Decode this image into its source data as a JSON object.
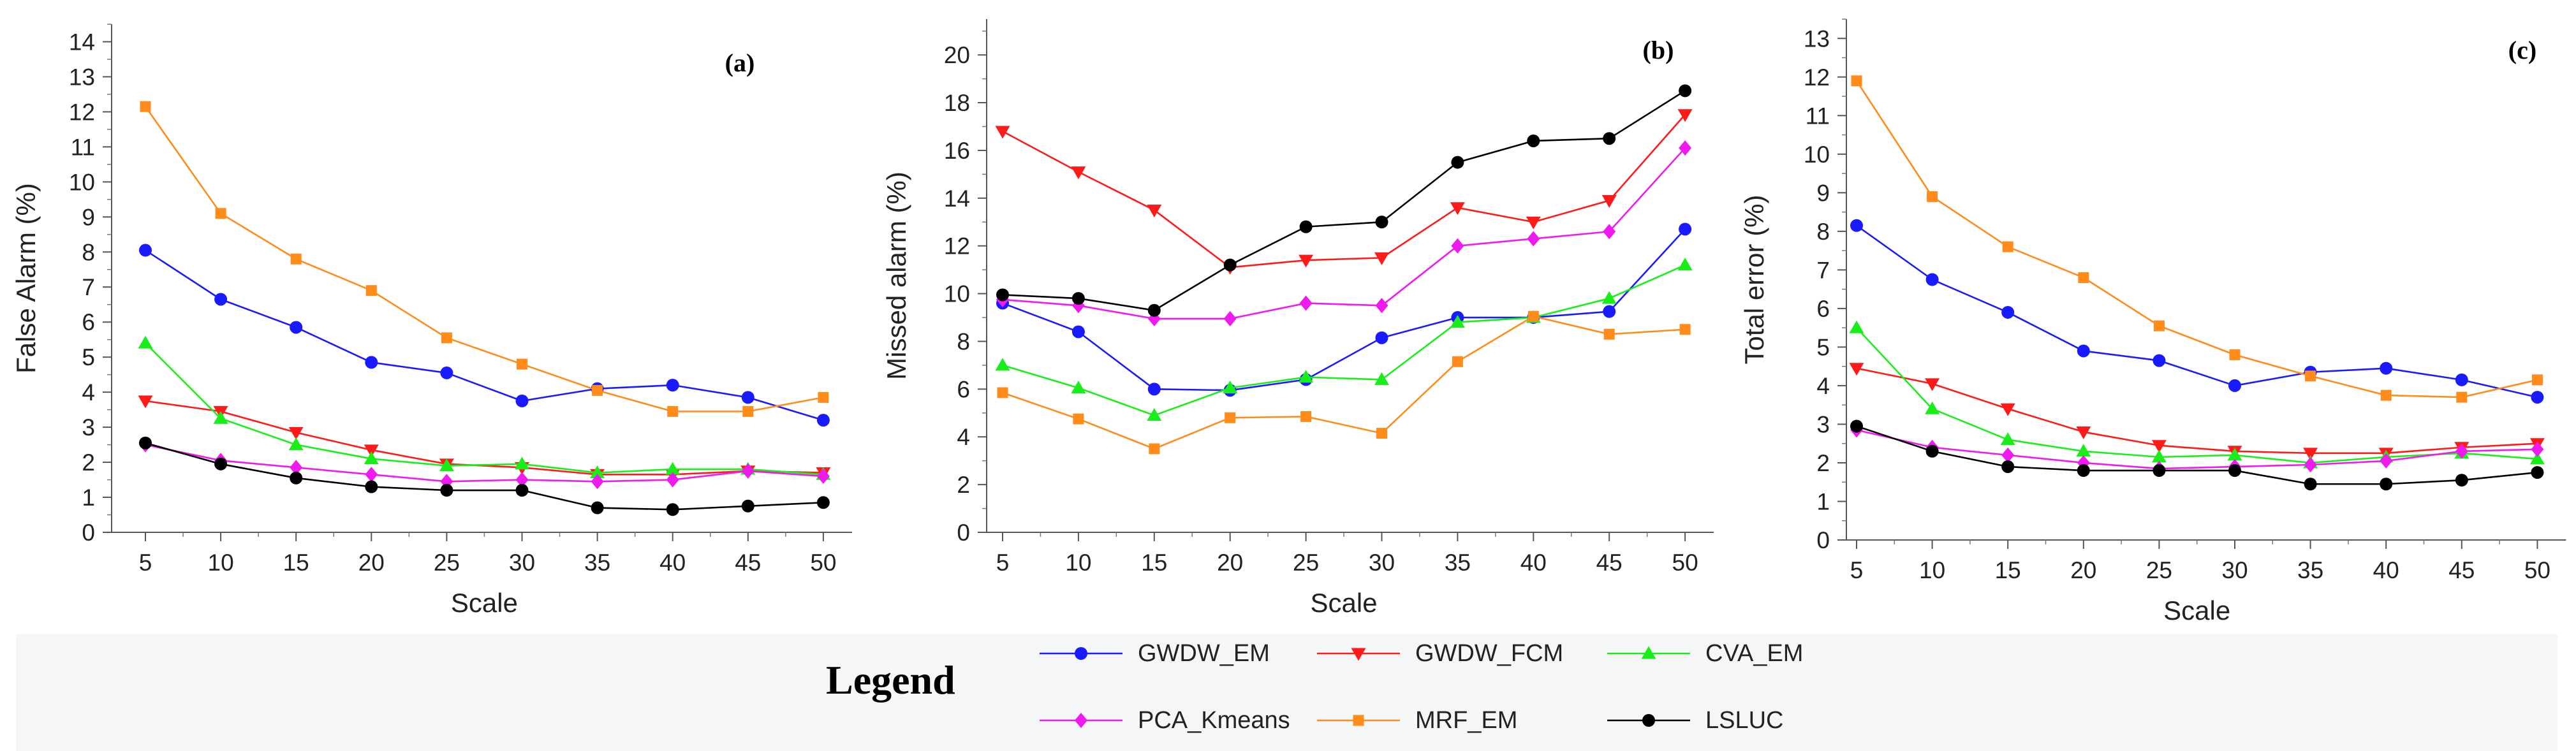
{
  "x_axis_label": "Scale",
  "legend": {
    "title": "Legend",
    "entries": [
      {
        "name": "GWDW_EM",
        "color": "#1a1aff",
        "marker": "circle"
      },
      {
        "name": "GWDW_FCM",
        "color": "#ff1a1a",
        "marker": "triangle-down"
      },
      {
        "name": "CVA_EM",
        "color": "#1aee1a",
        "marker": "triangle-up"
      },
      {
        "name": "PCA_Kmeans",
        "color": "#ee1aee",
        "marker": "diamond"
      },
      {
        "name": "MRF_EM",
        "color": "#ff8c1a",
        "marker": "square"
      },
      {
        "name": "LSLUC",
        "color": "#000000",
        "marker": "circle"
      }
    ]
  },
  "chart_data": [
    {
      "type": "line",
      "panel_label": "(a)",
      "xlabel": "Scale",
      "ylabel": "False Alarm (%)",
      "x": [
        5,
        10,
        15,
        20,
        25,
        30,
        35,
        40,
        45,
        50
      ],
      "xticks": [
        5,
        10,
        15,
        20,
        25,
        30,
        35,
        40,
        45,
        50
      ],
      "ylim": [
        0,
        14.5
      ],
      "yticks": [
        0,
        1,
        2,
        3,
        4,
        5,
        6,
        7,
        8,
        9,
        10,
        11,
        12,
        13,
        14
      ],
      "series": [
        {
          "name": "GWDW_EM",
          "values": [
            8.05,
            6.65,
            5.85,
            4.85,
            4.55,
            3.75,
            4.1,
            4.2,
            3.85,
            3.2
          ]
        },
        {
          "name": "GWDW_FCM",
          "values": [
            3.75,
            3.45,
            2.85,
            2.35,
            1.95,
            1.85,
            1.65,
            1.65,
            1.75,
            1.7
          ]
        },
        {
          "name": "CVA_EM",
          "values": [
            5.4,
            3.25,
            2.5,
            2.1,
            1.9,
            1.95,
            1.7,
            1.8,
            1.8,
            1.65
          ]
        },
        {
          "name": "PCA_Kmeans",
          "values": [
            2.5,
            2.05,
            1.85,
            1.65,
            1.45,
            1.5,
            1.45,
            1.5,
            1.75,
            1.6
          ]
        },
        {
          "name": "MRF_EM",
          "values": [
            12.15,
            9.1,
            7.8,
            6.9,
            5.55,
            4.8,
            4.05,
            3.45,
            3.45,
            3.85
          ]
        },
        {
          "name": "LSLUC",
          "values": [
            2.55,
            1.95,
            1.55,
            1.3,
            1.2,
            1.2,
            0.7,
            0.65,
            0.75,
            0.85
          ]
        }
      ]
    },
    {
      "type": "line",
      "panel_label": "(b)",
      "xlabel": "Scale",
      "ylabel": "Missed alarm (%)",
      "x": [
        5,
        10,
        15,
        20,
        25,
        30,
        35,
        40,
        45,
        50
      ],
      "xticks": [
        5,
        10,
        15,
        20,
        25,
        30,
        35,
        40,
        45,
        50
      ],
      "ylim": [
        0,
        21.5
      ],
      "yticks": [
        0,
        2,
        4,
        6,
        8,
        10,
        12,
        14,
        16,
        18,
        20
      ],
      "series": [
        {
          "name": "GWDW_EM",
          "values": [
            9.6,
            8.4,
            6.0,
            5.95,
            6.4,
            8.15,
            9.0,
            9.0,
            9.25,
            12.7
          ]
        },
        {
          "name": "GWDW_FCM",
          "values": [
            16.8,
            15.1,
            13.5,
            11.1,
            11.4,
            11.5,
            13.6,
            13.0,
            13.9,
            17.5
          ]
        },
        {
          "name": "CVA_EM",
          "values": [
            7.0,
            6.05,
            4.9,
            6.05,
            6.5,
            6.4,
            8.8,
            9.0,
            9.8,
            11.2
          ]
        },
        {
          "name": "PCA_Kmeans",
          "values": [
            9.75,
            9.5,
            8.95,
            8.95,
            9.6,
            9.5,
            12.0,
            12.3,
            12.6,
            16.1
          ]
        },
        {
          "name": "MRF_EM",
          "values": [
            5.85,
            4.75,
            3.5,
            4.8,
            4.85,
            4.15,
            7.15,
            9.05,
            8.3,
            8.5
          ]
        },
        {
          "name": "LSLUC",
          "values": [
            9.95,
            9.8,
            9.3,
            11.2,
            12.8,
            13.0,
            15.5,
            16.4,
            16.5,
            18.5
          ]
        }
      ]
    },
    {
      "type": "line",
      "panel_label": "(c)",
      "xlabel": "Scale",
      "ylabel": "Total error (%)",
      "x": [
        5,
        10,
        15,
        20,
        25,
        30,
        35,
        40,
        45,
        50
      ],
      "xticks": [
        5,
        10,
        15,
        20,
        25,
        30,
        35,
        40,
        45,
        50
      ],
      "ylim": [
        0,
        13.5
      ],
      "yticks": [
        0,
        1,
        2,
        3,
        4,
        5,
        6,
        7,
        8,
        9,
        10,
        11,
        12,
        13
      ],
      "series": [
        {
          "name": "GWDW_EM",
          "values": [
            8.15,
            6.75,
            5.9,
            4.9,
            4.65,
            4.0,
            4.35,
            4.45,
            4.15,
            3.7
          ]
        },
        {
          "name": "GWDW_FCM",
          "values": [
            4.45,
            4.05,
            3.4,
            2.8,
            2.45,
            2.3,
            2.25,
            2.25,
            2.4,
            2.5
          ]
        },
        {
          "name": "CVA_EM",
          "values": [
            5.5,
            3.4,
            2.6,
            2.3,
            2.15,
            2.2,
            2.0,
            2.15,
            2.25,
            2.1
          ]
        },
        {
          "name": "PCA_Kmeans",
          "values": [
            2.85,
            2.4,
            2.2,
            2.0,
            1.85,
            1.9,
            1.95,
            2.05,
            2.3,
            2.35
          ]
        },
        {
          "name": "MRF_EM",
          "values": [
            11.9,
            8.9,
            7.6,
            6.8,
            5.55,
            4.8,
            4.25,
            3.75,
            3.7,
            4.15
          ]
        },
        {
          "name": "LSLUC",
          "values": [
            2.95,
            2.3,
            1.9,
            1.8,
            1.8,
            1.8,
            1.45,
            1.45,
            1.55,
            1.75
          ]
        }
      ]
    }
  ]
}
